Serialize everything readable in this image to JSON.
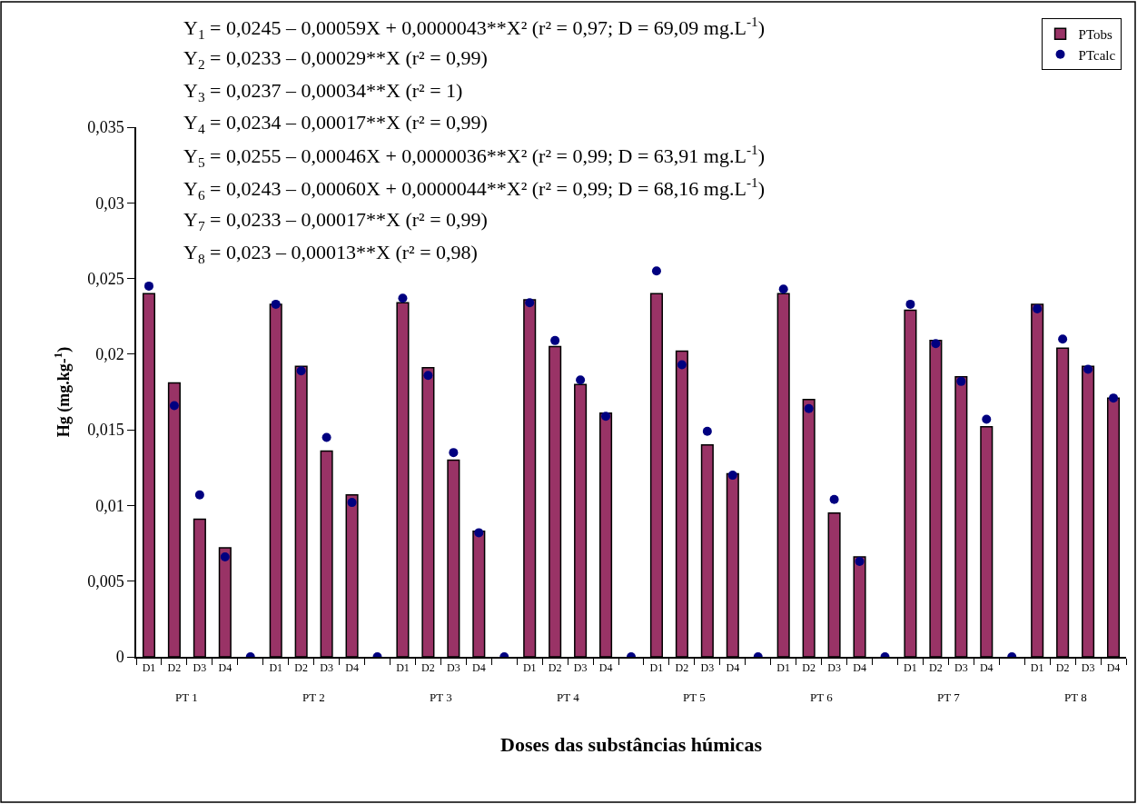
{
  "chart_data": {
    "type": "bar",
    "xlabel": "Doses das substâncias húmicas",
    "ylabel": "Hg (mg.kg-$^{1}$)",
    "categories": [
      "D1",
      "D2",
      "D3",
      "D4",
      null,
      "D1",
      "D2",
      "D3",
      "D4",
      null,
      "D1",
      "D2",
      "D3",
      "D4",
      null,
      "D1",
      "D2",
      "D3",
      "D4",
      null,
      "D1",
      "D2",
      "D3",
      "D4",
      null,
      "D1",
      "D2",
      "D3",
      "D4",
      null,
      "D1",
      "D2",
      "D3",
      "D4",
      null,
      "D1",
      "D2",
      "D3",
      "D4"
    ],
    "series": [
      {
        "name": "PTobs",
        "color": "#993366",
        "values": [
          0.024,
          0.0181,
          0.0091,
          0.0072,
          null,
          0.0233,
          0.0192,
          0.0136,
          0.0107,
          null,
          0.0234,
          0.0191,
          0.013,
          0.0083,
          null,
          0.0236,
          0.0205,
          0.018,
          0.0161,
          null,
          0.024,
          0.0202,
          0.014,
          0.0121,
          null,
          0.024,
          0.017,
          0.0095,
          0.0066,
          null,
          0.0229,
          0.0209,
          0.0185,
          0.0152,
          null,
          0.0233,
          0.0204,
          0.0192,
          0.0171
        ]
      },
      {
        "name": "PTcalc",
        "type": "scatter",
        "marker": "circle",
        "color": "#000080",
        "values": [
          0.0245,
          0.0166,
          0.0107,
          0.0066,
          0,
          0.0233,
          0.0189,
          0.0145,
          0.0102,
          0,
          0.0237,
          0.0186,
          0.0135,
          0.0082,
          0,
          0.0234,
          0.0209,
          0.0183,
          0.0159,
          0,
          0.0255,
          0.0193,
          0.0149,
          0.012,
          0,
          0.0243,
          0.0164,
          0.0104,
          0.0063,
          0,
          0.0233,
          0.0207,
          0.0182,
          0.0157,
          0,
          0.023,
          0.021,
          0.019,
          0.0171
        ]
      }
    ],
    "ylim": [
      0,
      0.035
    ],
    "yticks": [
      0,
      {
        "value": 0.005,
        "label": "0,005"
      },
      {
        "value": 0.01,
        "label": "0,01"
      },
      {
        "value": 0.015,
        "label": "0,015"
      },
      {
        "value": 0.02,
        "label": "0,02"
      },
      {
        "value": 0.025,
        "label": "0,025"
      },
      {
        "value": 0.03,
        "label": "0,03"
      },
      {
        "value": 0.035,
        "label": "0,035"
      }
    ],
    "legend": "top right",
    "annotations": [
      "Y$_{1}$ = 0,0245 – 0,00059X + 0,0000043**X² (r² = 0,97; D = 69,09 mg.L$^{-1}$)",
      "Y$_{2}$ = 0,0233 – 0,00029**X (r² = 0,99)",
      "Y$_{3}$ = 0,0237 – 0,00034**X (r² = 1)",
      "Y$_{4}$ = 0,0234 – 0,00017**X (r² = 0,99)",
      "Y$_{5}$ = 0,0255 – 0,00046X + 0,0000036**X² (r² = 0,99; D = 63,91 mg.L$^{-1}$)",
      "Y$_{6}$ = 0,0243 – 0,00060X + 0,0000044**X² (r² = 0,99; D = 68,16 mg.L$^{-1}$)",
      "Y$_{7}$ = 0,0233 – 0,00017**X (r² = 0,99)",
      "Y$_{8}$ = 0,023 – 0,00013**X (r² = 0,98)",
      "PT 1",
      "PT 2",
      "PT 3",
      "PT 4",
      "PT 5",
      "PT 6",
      "PT 7",
      "PT 8"
    ]
  }
}
